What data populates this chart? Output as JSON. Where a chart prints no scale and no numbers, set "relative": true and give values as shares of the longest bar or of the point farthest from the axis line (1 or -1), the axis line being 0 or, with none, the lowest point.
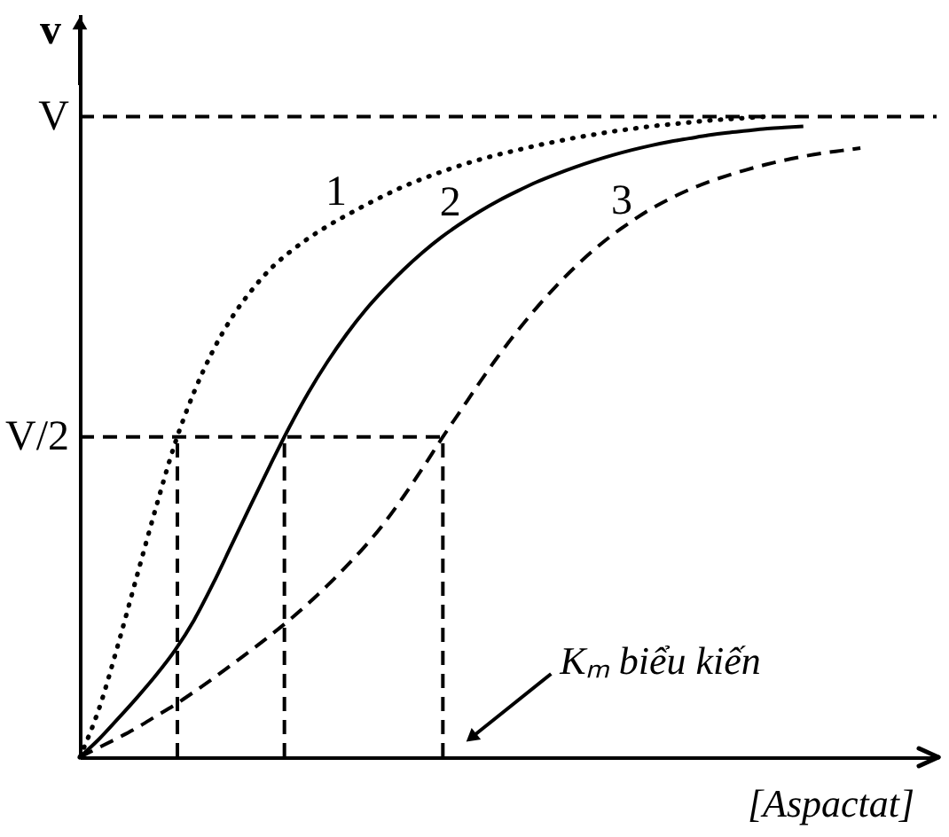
{
  "chart_data": {
    "type": "line",
    "xlabel": "[Aspactat]",
    "ylabel": "v",
    "relative": true,
    "categories": [
      null,
      null,
      null,
      null,
      null,
      null,
      null,
      null,
      null,
      null,
      null,
      null,
      null,
      null,
      null,
      null,
      null,
      null,
      null,
      null,
      null,
      null,
      null,
      null,
      null,
      null,
      null,
      null,
      null,
      null,
      null,
      null,
      null,
      null,
      null,
      null,
      null,
      null,
      null,
      null,
      null,
      null,
      null,
      null,
      null,
      null
    ],
    "series": [
      {
        "name": "1",
        "color": "#000000",
        "line_style": "dotted",
        "values": [
          0,
          0.075,
          0.175,
          0.283,
          0.39,
          0.49,
          0.57,
          0.635,
          0.687,
          0.728,
          0.762,
          0.788,
          0.81,
          0.829,
          0.846,
          0.862,
          0.877,
          0.891,
          0.903,
          0.914,
          0.924,
          0.933,
          0.941,
          0.948,
          0.955,
          0.961,
          0.967,
          0.972,
          0.977,
          0.981,
          0.985,
          0.988,
          0.991,
          0.994,
          0.996,
          0.998,
          1.0,
          null,
          null,
          null,
          null,
          null,
          null,
          null,
          null,
          null
        ]
      },
      {
        "name": "2",
        "color": "#000000",
        "line_style": "solid",
        "values": [
          0,
          0.028,
          0.06,
          0.093,
          0.128,
          0.167,
          0.214,
          0.271,
          0.333,
          0.395,
          0.456,
          0.515,
          0.569,
          0.617,
          0.66,
          0.698,
          0.731,
          0.761,
          0.788,
          0.812,
          0.833,
          0.852,
          0.869,
          0.884,
          0.898,
          0.91,
          0.921,
          0.931,
          0.94,
          0.948,
          0.955,
          0.961,
          0.966,
          0.971,
          0.975,
          0.978,
          0.981,
          0.983,
          0.985,
          null,
          null,
          null,
          null,
          null,
          null,
          null
        ]
      },
      {
        "name": "3",
        "color": "#000000",
        "line_style": "dashed",
        "values": [
          0,
          0.015,
          0.03,
          0.046,
          0.064,
          0.082,
          0.102,
          0.123,
          0.145,
          0.167,
          0.19,
          0.214,
          0.24,
          0.268,
          0.298,
          0.33,
          0.366,
          0.407,
          0.451,
          0.497,
          0.541,
          0.585,
          0.627,
          0.666,
          0.702,
          0.735,
          0.765,
          0.792,
          0.816,
          0.837,
          0.856,
          0.872,
          0.886,
          0.898,
          0.908,
          0.917,
          0.925,
          0.932,
          0.938,
          0.943,
          0.947,
          0.951,
          null,
          null,
          null,
          null
        ]
      }
    ],
    "ref_lines": [
      {
        "axis": "y",
        "value": 1,
        "label": "V",
        "color": "#000000",
        "line_style": "dashed"
      },
      {
        "axis": "y",
        "value": 0.5,
        "label": "V/2",
        "color": "#000000",
        "line_style": "dashed"
      }
    ],
    "annotations": [
      "Kₘ biểu kiến"
    ],
    "grid": false,
    "marker": "none"
  }
}
